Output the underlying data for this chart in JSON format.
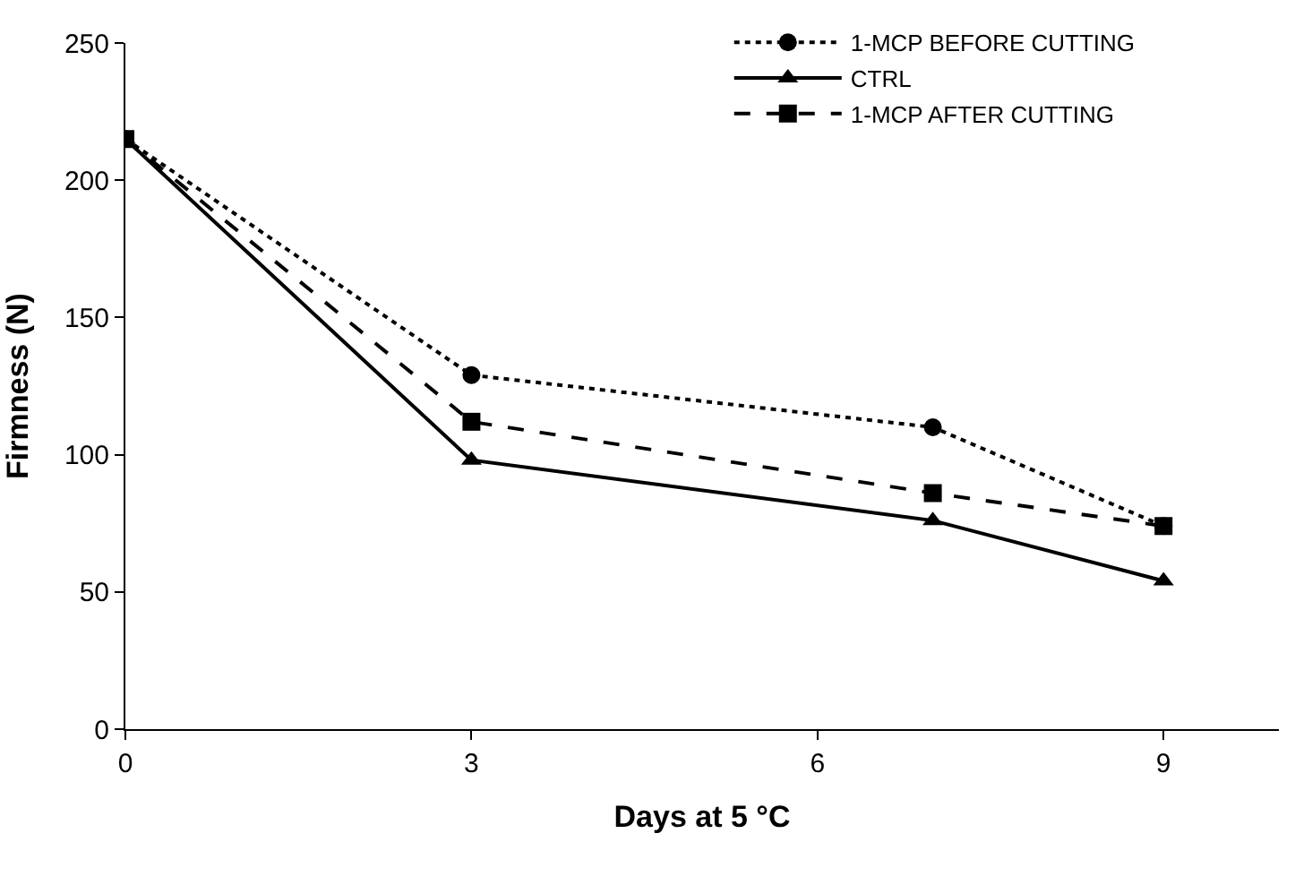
{
  "chart_data": {
    "type": "line",
    "xlabel": "Days at 5 °C",
    "ylabel": "Firmness (N)",
    "x": [
      0,
      3,
      7,
      9
    ],
    "series": [
      {
        "name": "1-MCP BEFORE CUTTING",
        "color": "#000000",
        "values": [
          215,
          129,
          110,
          74
        ],
        "marker": "circle",
        "line_style": "dotted"
      },
      {
        "name": "CTRL",
        "color": "#000000",
        "values": [
          215,
          98,
          76,
          54
        ],
        "marker": "triangle",
        "line_style": "solid"
      },
      {
        "name": "1-MCP AFTER CUTTING",
        "color": "#000000",
        "values": [
          215,
          112,
          86,
          74
        ],
        "marker": "square",
        "line_style": "dashed"
      }
    ],
    "xlim": [
      0,
      10
    ],
    "xticks": [
      0,
      3,
      6,
      9
    ],
    "ylim": [
      0,
      250
    ],
    "yticks": [
      0,
      50,
      100,
      150,
      200,
      250
    ],
    "grid": false,
    "legend": "top right"
  }
}
